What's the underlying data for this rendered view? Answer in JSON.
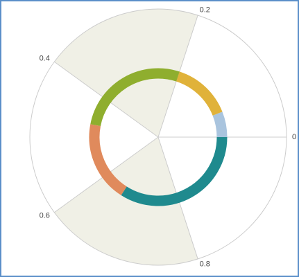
{
  "chart_data": {
    "type": "radial-donut",
    "xlim": [
      0,
      1
    ],
    "xticks": [
      0,
      0.2,
      0.4,
      0.6,
      0.8
    ],
    "bands": [
      [
        0.2,
        0.4
      ],
      [
        0.6,
        0.8
      ]
    ],
    "band_color": "#f0f0e6",
    "values": [
      0.06,
      0.14,
      0.27,
      0.19,
      0.34
    ],
    "colors": [
      "#a9c4de",
      "#e0b23a",
      "#8fae2e",
      "#e08a5c",
      "#1f8a8e"
    ]
  }
}
